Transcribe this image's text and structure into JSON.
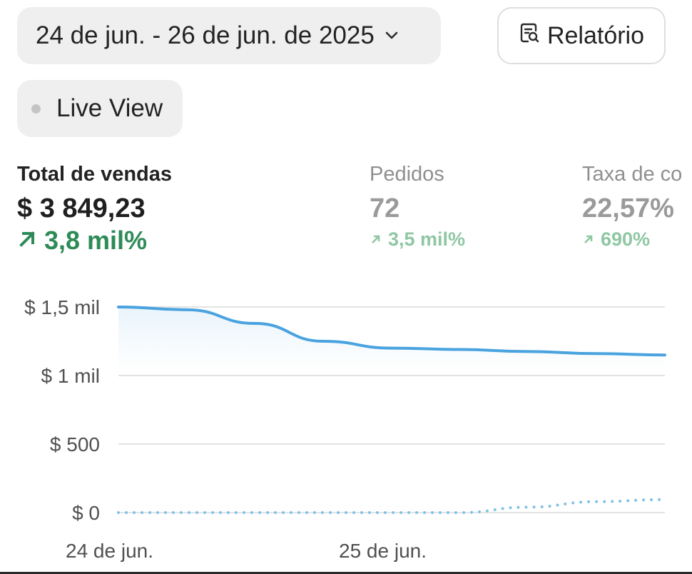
{
  "header": {
    "date_range": "24 de jun. - 26 de jun. de 2025",
    "report_label": "Relatório",
    "live_view_label": "Live View"
  },
  "metrics": [
    {
      "label": "Total de vendas",
      "value": "$ 3 849,23",
      "change": "3,8 mil%",
      "trend": "up"
    },
    {
      "label": "Pedidos",
      "value": "72",
      "change": "3,5 mil%",
      "trend": "up"
    },
    {
      "label": "Taxa de co",
      "value": "22,57%",
      "change": "690%",
      "trend": "up"
    }
  ],
  "colors": {
    "accent_line": "#4aa3df",
    "positive": "#2e8b57",
    "positive_muted": "#8fc7a3"
  },
  "chart_data": {
    "type": "line",
    "y_ticks": [
      "$ 1,5 mil",
      "$ 1 mil",
      "$ 500",
      "$ 0"
    ],
    "y_tick_values": [
      1500,
      1000,
      500,
      0
    ],
    "ylim": [
      0,
      1500
    ],
    "x_labels": [
      "24 de jun.",
      "25 de jun."
    ],
    "x": [
      0,
      0.125,
      0.25,
      0.375,
      0.5,
      0.625,
      0.75,
      0.875,
      1.0
    ],
    "series": [
      {
        "style": "solid",
        "color": "#4aa3df",
        "values": [
          1500,
          1480,
          1380,
          1250,
          1200,
          1190,
          1175,
          1160,
          1150
        ]
      },
      {
        "style": "dotted",
        "color": "#7ec3e6",
        "values": [
          0,
          0,
          0,
          0,
          0,
          0,
          40,
          80,
          95
        ]
      }
    ],
    "grid": true
  }
}
